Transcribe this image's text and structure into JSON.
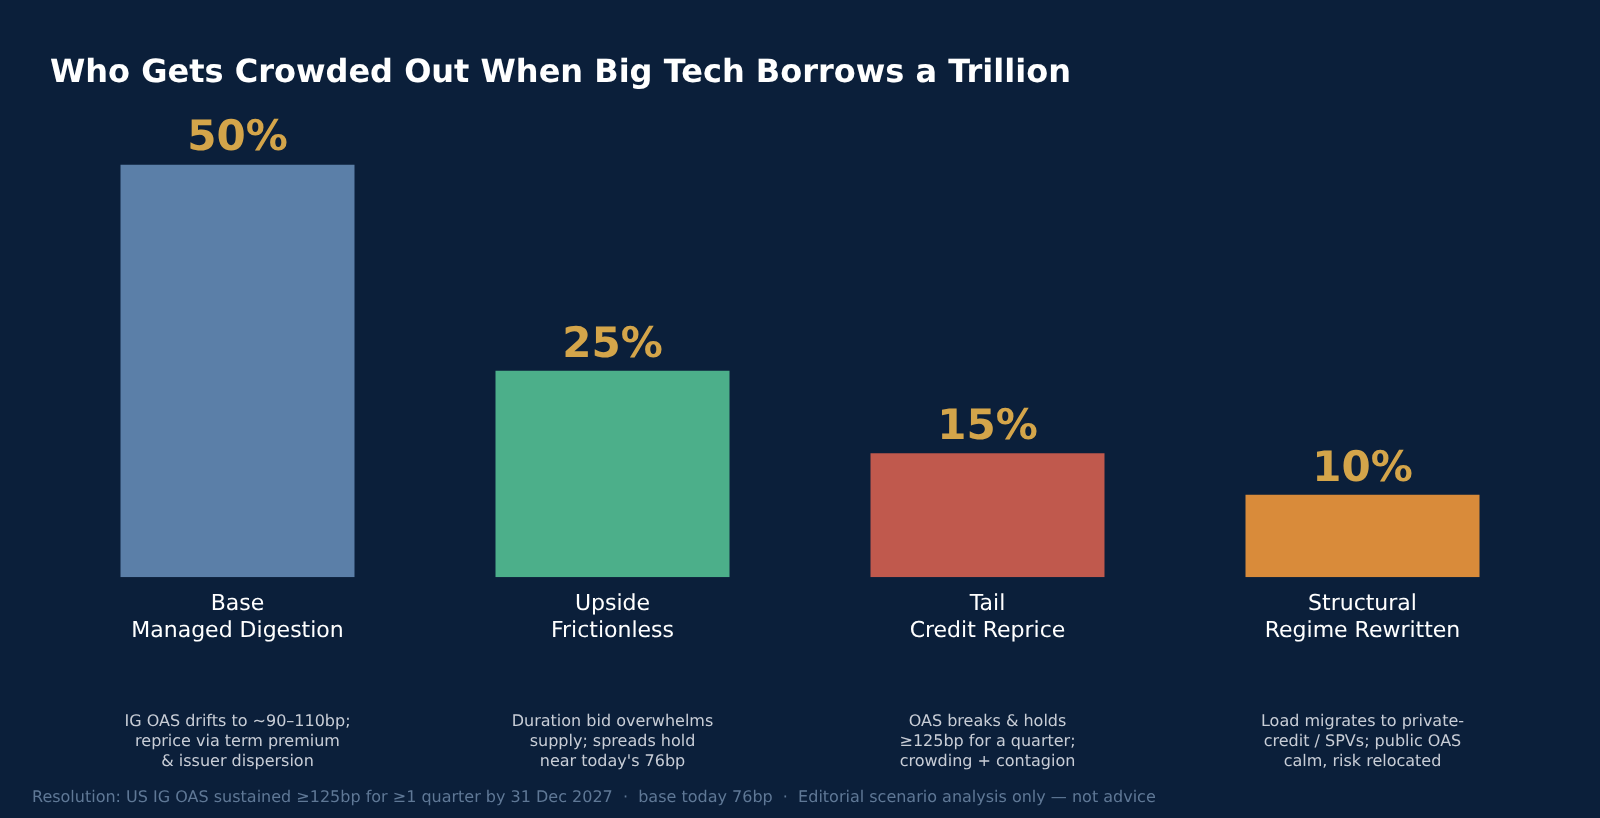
{
  "chart_data": {
    "type": "bar",
    "title": "Who Gets Crowded Out When Big Tech Borrows a Trillion",
    "categories": [
      "Base\nManaged Digestion",
      "Upside\nFrictionless",
      "Tail\nCredit Reprice",
      "Structural\nRegime Rewritten"
    ],
    "values": [
      50,
      25,
      15,
      10
    ],
    "colors": [
      "#5b7fa8",
      "#4caf8a",
      "#c0594d",
      "#d98b3a"
    ],
    "value_labels": [
      "50%",
      "25%",
      "15%",
      "10%"
    ],
    "ylim": [
      0,
      50
    ],
    "tick_labels": "x",
    "grid": false,
    "legend": false,
    "annotations": [
      "IG OAS drifts to ~90–110bp;\nreprice via term premium\n& issuer dispersion",
      "Duration bid overwhelms\nsupply; spreads hold\nnear today's 76bp",
      "OAS breaks & holds\n≥125bp for a quarter;\ncrowding + contagion",
      "Load migrates to private-\ncredit / SPVs; public OAS\ncalm, risk relocated",
      "Resolution: US IG OAS sustained ≥125bp for ≥1 quarter by 31 Dec 2027  ·  base today 76bp  ·  Editorial scenario analysis only — not advice"
    ]
  }
}
